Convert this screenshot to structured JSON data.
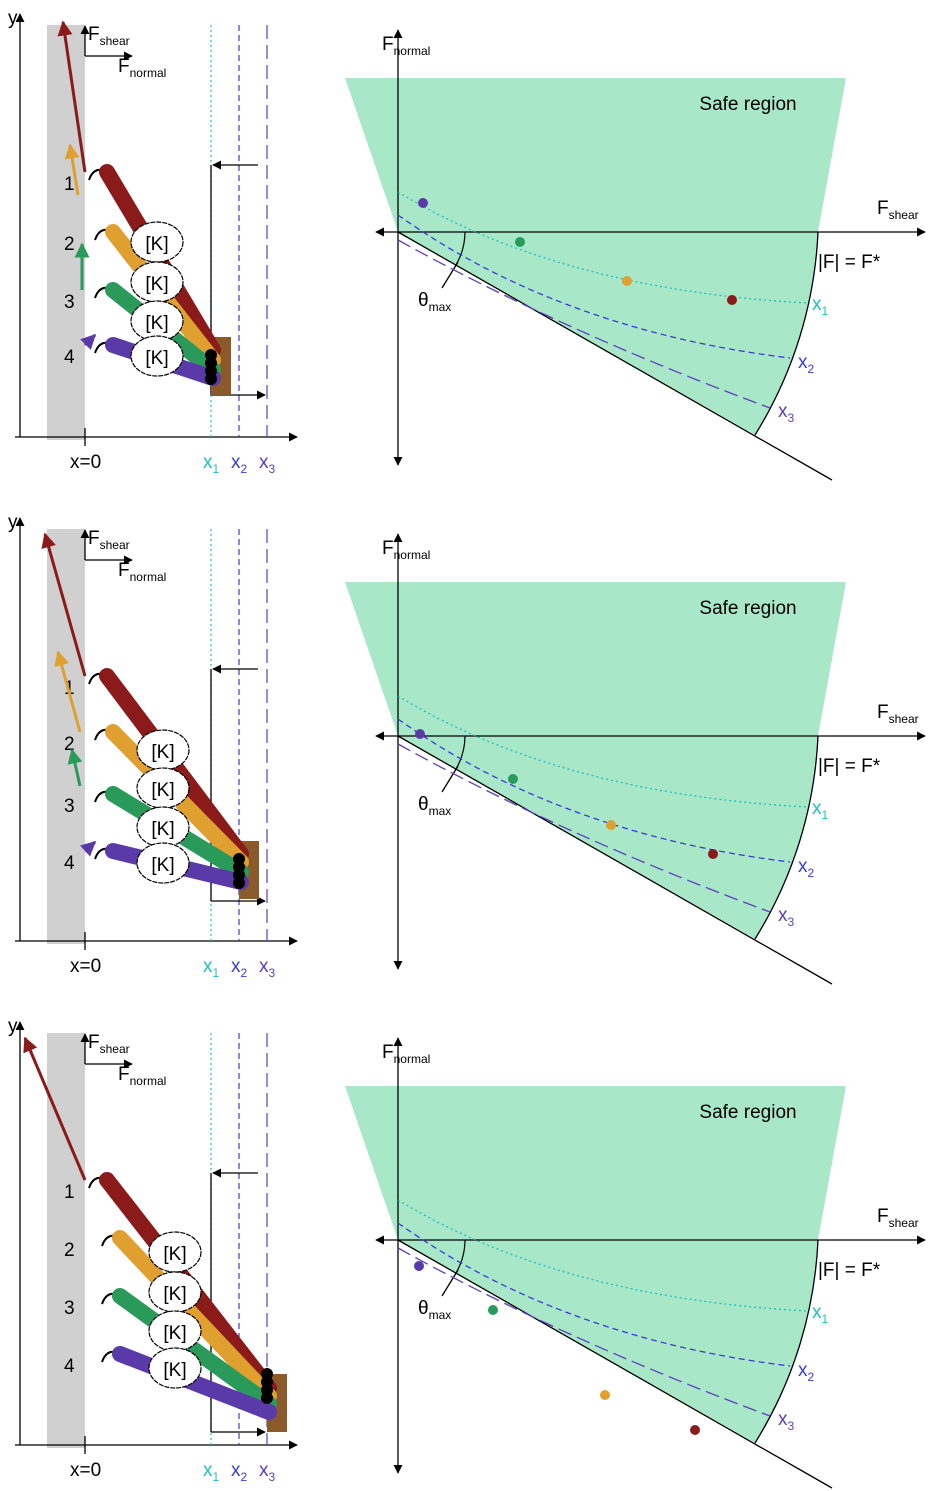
{
  "panels": [
    {
      "left": {
        "y_axis": "y",
        "f_shear": {
          "main": "F",
          "sub": "shear"
        },
        "f_normal": {
          "main": "F",
          "sub": "normal"
        },
        "legs": [
          "1",
          "2",
          "3",
          "4"
        ],
        "springs": [
          "[K]",
          "[K]",
          "[K]",
          "[K]"
        ],
        "origin": "x=0",
        "positions": [
          {
            "main": "x",
            "sub": "1"
          },
          {
            "main": "x",
            "sub": "2"
          },
          {
            "main": "x",
            "sub": "3"
          }
        ]
      },
      "right": {
        "f_normal": {
          "main": "F",
          "sub": "normal"
        },
        "region": "Safe region",
        "f_shear": {
          "main": "F",
          "sub": "shear"
        },
        "limit": "|F| = F*",
        "angle": {
          "main": "θ",
          "sub": "max"
        },
        "curves": [
          {
            "main": "x",
            "sub": "1"
          },
          {
            "main": "x",
            "sub": "2"
          },
          {
            "main": "x",
            "sub": "3"
          }
        ]
      }
    },
    {
      "left": {
        "y_axis": "y",
        "f_shear": {
          "main": "F",
          "sub": "shear"
        },
        "f_normal": {
          "main": "F",
          "sub": "normal"
        },
        "legs": [
          "1",
          "2",
          "3",
          "4"
        ],
        "springs": [
          "[K]",
          "[K]",
          "[K]",
          "[K]"
        ],
        "origin": "x=0",
        "positions": [
          {
            "main": "x",
            "sub": "1"
          },
          {
            "main": "x",
            "sub": "2"
          },
          {
            "main": "x",
            "sub": "3"
          }
        ]
      },
      "right": {
        "f_normal": {
          "main": "F",
          "sub": "normal"
        },
        "region": "Safe region",
        "f_shear": {
          "main": "F",
          "sub": "shear"
        },
        "limit": "|F| = F*",
        "angle": {
          "main": "θ",
          "sub": "max"
        },
        "curves": [
          {
            "main": "x",
            "sub": "1"
          },
          {
            "main": "x",
            "sub": "2"
          },
          {
            "main": "x",
            "sub": "3"
          }
        ]
      }
    },
    {
      "left": {
        "y_axis": "y",
        "f_shear": {
          "main": "F",
          "sub": "shear"
        },
        "f_normal": {
          "main": "F",
          "sub": "normal"
        },
        "legs": [
          "1",
          "2",
          "3",
          "4"
        ],
        "springs": [
          "[K]",
          "[K]",
          "[K]",
          "[K]"
        ],
        "origin": "x=0",
        "positions": [
          {
            "main": "x",
            "sub": "1"
          },
          {
            "main": "x",
            "sub": "2"
          },
          {
            "main": "x",
            "sub": "3"
          }
        ]
      },
      "right": {
        "f_normal": {
          "main": "F",
          "sub": "normal"
        },
        "region": "Safe region",
        "f_shear": {
          "main": "F",
          "sub": "shear"
        },
        "limit": "|F| = F*",
        "angle": {
          "main": "θ",
          "sub": "max"
        },
        "curves": [
          {
            "main": "x",
            "sub": "1"
          },
          {
            "main": "x",
            "sub": "2"
          },
          {
            "main": "x",
            "sub": "3"
          }
        ]
      }
    }
  ]
}
